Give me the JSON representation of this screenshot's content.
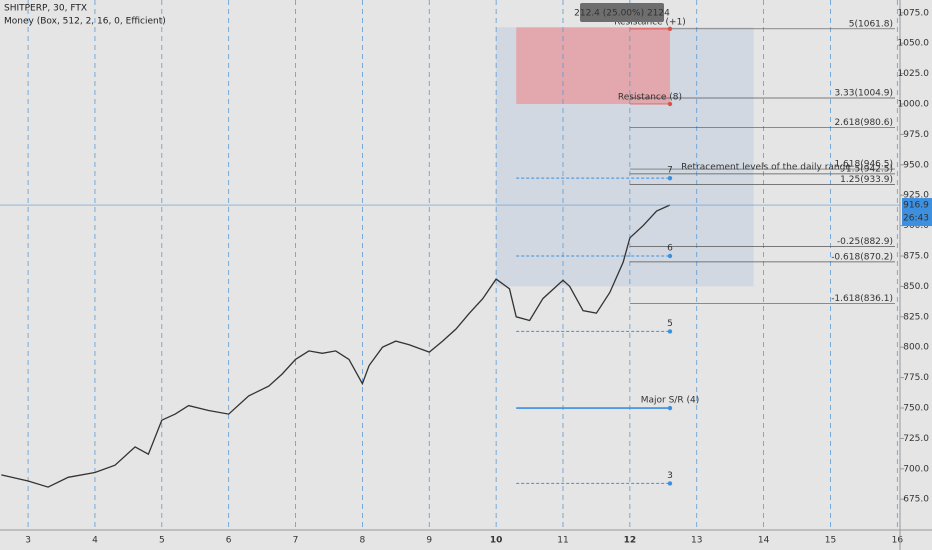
{
  "chart_data": {
    "type": "line",
    "title": "SHITPERP, 30, FTX",
    "subtitle": "Money (Box, 512, 2, 16, 0, Efficient)",
    "color": "#333333",
    "x": [
      2.6,
      3.0,
      3.3,
      3.6,
      4.0,
      4.3,
      4.6,
      4.8,
      5.0,
      5.2,
      5.4,
      5.7,
      6.0,
      6.3,
      6.6,
      6.8,
      7.0,
      7.2,
      7.4,
      7.6,
      7.8,
      8.0,
      8.1,
      8.3,
      8.5,
      8.7,
      9.0,
      9.2,
      9.4,
      9.6,
      9.8,
      10.0,
      10.2,
      10.3,
      10.5,
      10.7,
      11.0,
      11.1,
      11.3,
      11.5,
      11.7,
      11.9,
      12.0,
      12.2,
      12.4,
      12.6
    ],
    "values": [
      695,
      690,
      685,
      693,
      697,
      703,
      718,
      712,
      740,
      745,
      752,
      748,
      745,
      760,
      768,
      778,
      790,
      797,
      795,
      797,
      790,
      770,
      785,
      800,
      805,
      802,
      796,
      805,
      815,
      828,
      840,
      856,
      848,
      825,
      822,
      840,
      855,
      850,
      830,
      828,
      845,
      870,
      890,
      900,
      912,
      916.9
    ],
    "xlim": [
      2.58,
      16.04
    ],
    "xticks": [
      3,
      4,
      5,
      6,
      7,
      8,
      9,
      10,
      11,
      12,
      13,
      14,
      15,
      16
    ],
    "ylim": [
      649.7,
      1085.5
    ],
    "yticks": [
      {
        "value": 675,
        "label": "675.0"
      },
      {
        "value": 700,
        "label": "700.0"
      },
      {
        "value": 725,
        "label": "725.0"
      },
      {
        "value": 750,
        "label": "750.0"
      },
      {
        "value": 775,
        "label": "775.0"
      },
      {
        "value": 800,
        "label": "800.0"
      },
      {
        "value": 825,
        "label": "825.0"
      },
      {
        "value": 850,
        "label": "850.0"
      },
      {
        "value": 875,
        "label": "875.0"
      },
      {
        "value": 900,
        "label": "900.0"
      },
      {
        "value": 925,
        "label": "925.0"
      },
      {
        "value": 950,
        "label": "950.0"
      },
      {
        "value": 975,
        "label": "975.0"
      },
      {
        "value": 1000,
        "label": "1000.0"
      },
      {
        "value": 1025,
        "label": "1025.0"
      },
      {
        "value": 1050,
        "label": "1050.0"
      },
      {
        "value": 1075,
        "label": "1075.0"
      }
    ],
    "fib_levels": [
      {
        "label": "5(1061.8)",
        "value": 1061.8
      },
      {
        "label": "3.33(1004.9)",
        "value": 1004.9
      },
      {
        "label": "2.618(980.6)",
        "value": 980.6
      },
      {
        "label": "1.618(946.5)",
        "value": 946.5
      },
      {
        "label": "1.5(942.5)",
        "value": 942.5
      },
      {
        "label": "1.25(933.9)",
        "value": 933.9
      },
      {
        "label": "-0.25(882.9)",
        "value": 882.9
      },
      {
        "label": "-0.618(870.2)",
        "value": 870.2
      },
      {
        "label": "-1.618(836.1)",
        "value": 836.1
      }
    ],
    "resistance_levels": [
      {
        "label": "Resistance (+1)",
        "value": 1061.8
      },
      {
        "label": "Resistance (8)",
        "value": 1000
      }
    ],
    "sr_levels": [
      {
        "label": "7",
        "value": 939
      },
      {
        "label": "6",
        "value": 875
      },
      {
        "label": "5",
        "value": 813
      },
      {
        "label": "Major S/R (4)",
        "value": 750
      },
      {
        "label": "3",
        "value": 688
      }
    ],
    "boxes": [
      {
        "x": [
          10.0,
          13.85
        ],
        "y": [
          850,
          1063
        ],
        "color": "#cfd6e0"
      },
      {
        "x": [
          10.3,
          12.6
        ],
        "y": [
          1000,
          1063
        ],
        "color": "#e6a0a3"
      }
    ],
    "annotation": "Retracement levels of the daily range",
    "tooltip": "212.4 (25.00%) 2124",
    "current_price": 916.9,
    "countdown": "26:43"
  }
}
